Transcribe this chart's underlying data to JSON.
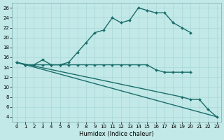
{
  "xlabel": "Humidex (Indice chaleur)",
  "bg_color": "#c2e8e8",
  "line_color": "#1a6e6a",
  "xlim": [
    -0.5,
    23.5
  ],
  "ylim": [
    3,
    27
  ],
  "yticks": [
    4,
    6,
    8,
    10,
    12,
    14,
    16,
    18,
    20,
    22,
    24,
    26
  ],
  "xticks": [
    0,
    1,
    2,
    3,
    4,
    5,
    6,
    7,
    8,
    9,
    10,
    11,
    12,
    13,
    14,
    15,
    16,
    17,
    18,
    19,
    20,
    21,
    22,
    23
  ],
  "series": [
    {
      "x": [
        0,
        1,
        2,
        3,
        4,
        5,
        6,
        7,
        8,
        9,
        10,
        11,
        12,
        13,
        14,
        15,
        16,
        17,
        18,
        19,
        20
      ],
      "y": [
        15,
        14.5,
        14.5,
        15.5,
        14.5,
        14.5,
        15,
        17,
        19,
        21,
        21.5,
        24,
        23,
        23.5,
        26,
        25.5,
        25,
        25,
        23,
        22,
        21
      ],
      "marker": true,
      "linewidth": 1.0
    },
    {
      "x": [
        0,
        1,
        2,
        3,
        4,
        5,
        6,
        7,
        8,
        9,
        10,
        11,
        12,
        13,
        14,
        15,
        16,
        17,
        18,
        19,
        20
      ],
      "y": [
        15,
        14.5,
        14.5,
        14.5,
        14.5,
        14.5,
        14.5,
        14.5,
        14.5,
        14.5,
        14.5,
        14.5,
        14.5,
        14.5,
        14.5,
        14.5,
        13.5,
        13,
        13,
        13,
        13
      ],
      "marker": true,
      "linewidth": 1.0
    },
    {
      "x": [
        0,
        23
      ],
      "y": [
        15,
        4
      ],
      "marker": false,
      "linewidth": 1.0
    },
    {
      "x": [
        0,
        19,
        20,
        21,
        22,
        23
      ],
      "y": [
        15,
        8,
        7.5,
        7.5,
        5.5,
        4
      ],
      "marker": true,
      "linewidth": 1.0
    }
  ]
}
